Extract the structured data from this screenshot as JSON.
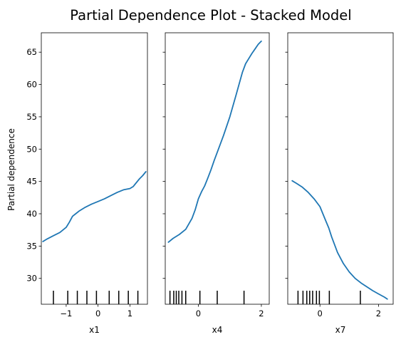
{
  "colors": {
    "line": "#1f77b4",
    "axes": "#000000",
    "background": "#ffffff"
  },
  "chart_data": {
    "type": "line",
    "title": "Partial Dependence Plot - Stacked Model",
    "ylabel": "Partial dependence",
    "ylim": [
      26.0,
      68.0
    ],
    "yticks": [
      30,
      35,
      40,
      45,
      50,
      55,
      60,
      65
    ],
    "grid": false,
    "legend": "none",
    "panels": [
      {
        "xlabel": "x1",
        "xlim": [
          -1.78,
          1.55
        ],
        "xticks": [
          -1,
          0,
          1
        ],
        "xtick_labels": [
          "−1",
          "0",
          "1"
        ],
        "x": [
          -1.73,
          -1.6,
          -1.4,
          -1.2,
          -1.0,
          -0.9,
          -0.8,
          -0.7,
          -0.6,
          -0.4,
          -0.2,
          0.0,
          0.2,
          0.4,
          0.6,
          0.8,
          1.0,
          1.1,
          1.2,
          1.3,
          1.4,
          1.5
        ],
        "y": [
          35.7,
          36.1,
          36.6,
          37.1,
          37.9,
          38.7,
          39.6,
          40.0,
          40.4,
          41.0,
          41.5,
          41.9,
          42.3,
          42.8,
          43.3,
          43.7,
          43.9,
          44.2,
          44.8,
          45.4,
          45.9,
          46.5
        ],
        "deciles": [
          -1.4,
          -0.95,
          -0.65,
          -0.35,
          -0.05,
          0.35,
          0.65,
          0.95,
          1.25
        ]
      },
      {
        "xlabel": "x4",
        "xlim": [
          -1.05,
          2.25
        ],
        "xticks": [
          0,
          2
        ],
        "xtick_labels": [
          "0",
          "2"
        ],
        "x": [
          -0.95,
          -0.8,
          -0.6,
          -0.4,
          -0.2,
          -0.1,
          0.0,
          0.1,
          0.2,
          0.3,
          0.4,
          0.5,
          0.6,
          0.8,
          1.0,
          1.2,
          1.4,
          1.5,
          1.6,
          1.7,
          1.8,
          1.9,
          2.0
        ],
        "y": [
          35.6,
          36.2,
          36.8,
          37.6,
          39.3,
          40.6,
          42.3,
          43.4,
          44.3,
          45.5,
          46.8,
          48.2,
          49.5,
          52.1,
          55.0,
          58.4,
          61.9,
          63.2,
          64.0,
          64.8,
          65.5,
          66.2,
          66.7
        ],
        "deciles": [
          -0.9,
          -0.78,
          -0.7,
          -0.62,
          -0.52,
          -0.4,
          0.05,
          0.6,
          1.45
        ]
      },
      {
        "xlabel": "x7",
        "xlim": [
          -1.1,
          2.5
        ],
        "xticks": [
          0,
          2
        ],
        "xtick_labels": [
          "0",
          "2"
        ],
        "x": [
          -0.95,
          -0.8,
          -0.6,
          -0.4,
          -0.2,
          0.0,
          0.1,
          0.2,
          0.3,
          0.4,
          0.6,
          0.8,
          1.0,
          1.2,
          1.4,
          1.6,
          1.8,
          2.0,
          2.2,
          2.3
        ],
        "y": [
          45.1,
          44.7,
          44.1,
          43.3,
          42.3,
          41.1,
          40.0,
          38.9,
          37.8,
          36.4,
          34.0,
          32.3,
          31.0,
          30.0,
          29.3,
          28.7,
          28.1,
          27.6,
          27.1,
          26.8
        ],
        "deciles": [
          -0.75,
          -0.58,
          -0.45,
          -0.35,
          -0.25,
          -0.12,
          -0.02,
          0.32,
          1.38
        ]
      }
    ]
  }
}
